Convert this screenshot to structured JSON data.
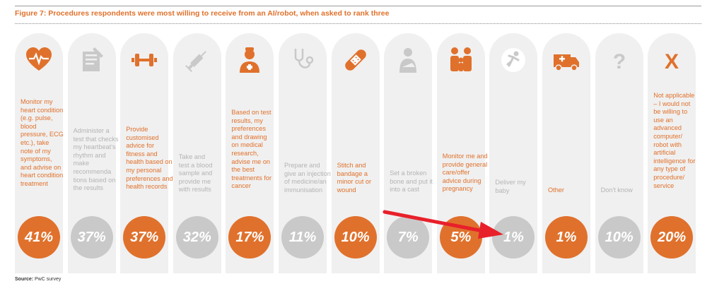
{
  "figure_title": "Figure 7: Procedures respondents were most willing to receive from an AI/robot, when asked to rank three",
  "source_label": "Source:",
  "source_value": "PwC survey",
  "colors": {
    "highlight": "#e0712c",
    "muted": "#c9c9c9",
    "column_bg": "#f0f0f0",
    "dim_text": "#b4b4b4",
    "arrow": "#e8202a"
  },
  "chart_data": {
    "type": "bar",
    "title": "Figure 7: Procedures respondents were most willing to receive from an AI/robot, when asked to rank three",
    "categories": [
      "Monitor my heart condition (e.g. pulse, blood pressure, ECG etc.), take note of my symptoms, and advise on heart condition treatment",
      "Administer a test that checks my heartbeat's rhythm and make recommendations based on the results",
      "Provide customised advice for fitness and health based on my personal preferences and health records",
      "Take and test a blood sample and provide me with results",
      "Based on test results, my preferences and drawing on medical research, advise me on the best treatments for cancer",
      "Prepare and give an injection of medicine/an immunisation",
      "Stitch and bandage a minor cut or wound",
      "Set a broken bone and put it into a cast",
      "Monitor me and provide general care/offer advice during pregnancy",
      "Deliver my baby",
      "Other",
      "Don't know",
      "Not applicable – I would not be willing to use an advanced computer/robot with artificial intelligence for any type of procedure/service"
    ],
    "values": [
      41,
      37,
      37,
      32,
      17,
      11,
      10,
      7,
      5,
      1,
      1,
      10,
      20
    ],
    "unit": "%"
  },
  "items": [
    {
      "icon": "heart-monitor-icon",
      "label": "Monitor my\nheart condition\n(e.g. pulse,\nblood\npressure, ECG\netc.), take\nnote of my\nsymptoms,\nand advise on\nheart condition\ntreatment",
      "value_label": "41%",
      "highlight": true
    },
    {
      "icon": "test-document-icon",
      "label": "Administer a\ntest that checks\nmy heartbeat's\nrhythm and\nmake\nrecommenda\ntions based on\nthe results",
      "value_label": "37%",
      "highlight": false
    },
    {
      "icon": "dumbbell-icon",
      "label": "Provide\ncustomised\nadvice for\nfitness and\nhealth based on\nmy personal\npreferences and\nhealth records",
      "value_label": "37%",
      "highlight": true
    },
    {
      "icon": "syringe-icon",
      "label": "Take and\ntest a blood\nsample and\nprovide me\nwith results",
      "value_label": "32%",
      "highlight": false
    },
    {
      "icon": "doctor-icon",
      "label": "Based on test\nresults, my\npreferences\nand drawing\non medical\nresearch,\nadvise me on\nthe best\ntreatments for\ncancer",
      "value_label": "17%",
      "highlight": true
    },
    {
      "icon": "stethoscope-icon",
      "label": "Prepare and\ngive an injection\nof medicine/an\nimmunisation",
      "value_label": "11%",
      "highlight": false
    },
    {
      "icon": "bandage-icon",
      "label": "Stitch and\nbandage a\nminor cut or\nwound",
      "value_label": "10%",
      "highlight": true
    },
    {
      "icon": "arm-sling-icon",
      "label": "Set a broken\nbone and put it\ninto a cast",
      "value_label": "7%",
      "highlight": false
    },
    {
      "icon": "family-icon",
      "label": "Monitor me and\nprovide general\ncare/offer\nadvice during\npregnancy",
      "value_label": "5%",
      "highlight": true
    },
    {
      "icon": "baby-icon",
      "label": "Deliver my\nbaby",
      "value_label": "1%",
      "highlight": false
    },
    {
      "icon": "ambulance-icon",
      "label": "Other",
      "value_label": "1%",
      "highlight": true
    },
    {
      "icon": "question-mark-icon",
      "label": "Don't know",
      "value_label": "10%",
      "highlight": false
    },
    {
      "icon": "x-mark-icon",
      "label": "Not applicable\n– I would not\nbe willing to\nuse an\nadvanced\ncomputer/\nrobot with\nartificial\nintelligence for\nany type of\nprocedure/\nservice",
      "value_label": "20%",
      "highlight": true
    }
  ]
}
